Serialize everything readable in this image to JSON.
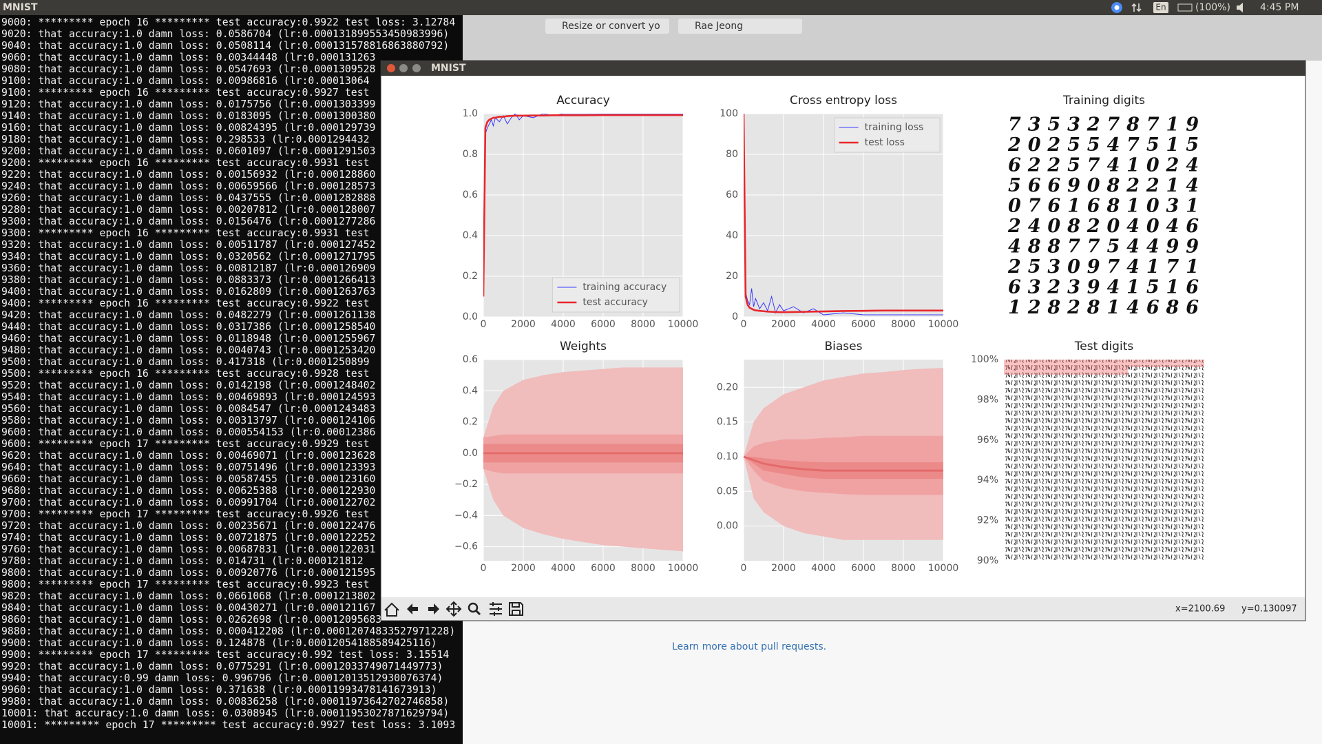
{
  "top_bar": {
    "title": "MNIST",
    "language": "En",
    "battery": "(100%)",
    "clock": "4:45 PM"
  },
  "browser": {
    "tabs": [
      "Resize or convert yo",
      "Rae Jeong"
    ],
    "link": "Learn more about pull requests."
  },
  "terminal": {
    "lines": [
      "9000: ********* epoch 16 ********* test accuracy:0.9922 test loss: 3.12784",
      "9020: that accuracy:1.0 damn loss: 0.0586704 (lr:0.000131899553450983996)",
      "9040: that accuracy:1.0 damn loss: 0.0508114 (lr:0.000131578816863880792)",
      "9060: that accuracy:1.0 damn loss: 0.00344448 (lr:0.000131263",
      "9080: that accuracy:1.0 damn loss: 0.0547693 (lr:0.0001309528",
      "9100: that accuracy:1.0 damn loss: 0.00986816 (lr:0.00013064",
      "9100: ********* epoch 16 ********* test accuracy:0.9927 test",
      "9120: that accuracy:1.0 damn loss: 0.0175756 (lr:0.0001303399",
      "9140: that accuracy:1.0 damn loss: 0.0183095 (lr:0.0001300380",
      "9160: that accuracy:1.0 damn loss: 0.00824395 (lr:0.000129739",
      "9180: that accuracy:1.0 damn loss: 0.298533 (lr:0.0001294432",
      "9200: that accuracy:1.0 damn loss: 0.0601097 (lr:0.0001291503",
      "9200: ********* epoch 16 ********* test accuracy:0.9931 test",
      "9220: that accuracy:1.0 damn loss: 0.00156932 (lr:0.000128860",
      "9240: that accuracy:1.0 damn loss: 0.00659566 (lr:0.000128573",
      "9260: that accuracy:1.0 damn loss: 0.0437555 (lr:0.0001282888",
      "9280: that accuracy:1.0 damn loss: 0.00207812 (lr:0.000128007",
      "9300: that accuracy:1.0 damn loss: 0.0156476 (lr:0.0001277286",
      "9300: ********* epoch 16 ********* test accuracy:0.9931 test",
      "9320: that accuracy:1.0 damn loss: 0.00511787 (lr:0.000127452",
      "9340: that accuracy:1.0 damn loss: 0.0320562 (lr:0.0001271795",
      "9360: that accuracy:1.0 damn loss: 0.00812187 (lr:0.000126909",
      "9380: that accuracy:1.0 damn loss: 0.0883373 (lr:0.0001266413",
      "9400: that accuracy:1.0 damn loss: 0.0162809 (lr:0.0001263763",
      "9400: ********* epoch 16 ********* test accuracy:0.9922 test",
      "9420: that accuracy:1.0 damn loss: 0.0482279 (lr:0.0001261138",
      "9440: that accuracy:1.0 damn loss: 0.0317386 (lr:0.0001258540",
      "9460: that accuracy:1.0 damn loss: 0.0118948 (lr:0.0001255967",
      "9480: that accuracy:1.0 damn loss: 0.0040743 (lr:0.0001253420",
      "9500: that accuracy:1.0 damn loss: 0.417318 (lr:0.0001250899",
      "9500: ********* epoch 16 ********* test accuracy:0.9928 test",
      "9520: that accuracy:1.0 damn loss: 0.0142198 (lr:0.0001248402",
      "9540: that accuracy:1.0 damn loss: 0.00469893 (lr:0.000124593",
      "9560: that accuracy:1.0 damn loss: 0.0084547 (lr:0.0001243483",
      "9580: that accuracy:1.0 damn loss: 0.00313797 (lr:0.000124106",
      "9600: that accuracy:1.0 damn loss: 0.000554153 (lr:0.00012386",
      "9600: ********* epoch 17 ********* test accuracy:0.9929 test",
      "9620: that accuracy:1.0 damn loss: 0.00469071 (lr:0.000123628",
      "9640: that accuracy:1.0 damn loss: 0.00751496 (lr:0.000123393",
      "9660: that accuracy:1.0 damn loss: 0.00587455 (lr:0.000123160",
      "9680: that accuracy:1.0 damn loss: 0.00625388 (lr:0.000122930",
      "9700: that accuracy:1.0 damn loss: 0.00991704 (lr:0.000122702",
      "9700: ********* epoch 17 ********* test accuracy:0.9926 test",
      "9720: that accuracy:1.0 damn loss: 0.00235671 (lr:0.000122476",
      "9740: that accuracy:1.0 damn loss: 0.00721875 (lr:0.000122252",
      "9760: that accuracy:1.0 damn loss: 0.00687831 (lr:0.000122031",
      "9780: that accuracy:1.0 damn loss: 0.014731 (lr:0.000121812",
      "9800: that accuracy:1.0 damn loss: 0.00920776 (lr:0.000121595",
      "9800: ********* epoch 17 ********* test accuracy:0.9923 test",
      "9820: that accuracy:1.0 damn loss: 0.0661068 (lr:0.0001213802",
      "9840: that accuracy:1.0 damn loss: 0.00430271 (lr:0.000121167",
      "9860: that accuracy:1.0 damn loss: 0.0262698 (lr:0.00012095683",
      "9880: that accuracy:1.0 damn loss: 0.000412208 (lr:0.00012074833527971228)",
      "9900: that accuracy:1.0 damn loss: 0.124878 (lr:0.00012054188589425116)",
      "9900: ********* epoch 17 ********* test accuracy:0.992 test loss: 3.15514",
      "9920: that accuracy:1.0 damn loss: 0.0775291 (lr:0.00012033749071449773)",
      "9940: that accuracy:0.99 damn loss: 0.996796 (lr:0.00012013512930076374)",
      "9960: that accuracy:1.0 damn loss: 0.371638 (lr:0.00011993478141673913)",
      "9980: that accuracy:1.0 damn loss: 0.00836258 (lr:0.00011973642702746858)",
      "10001: that accuracy:1.0 damn loss: 0.0308945 (lr:0.00011953027871629794)",
      "10001: ********* epoch 17 ********* test accuracy:0.9927 test loss: 3.1093"
    ]
  },
  "window": {
    "title": "MNIST",
    "status_x": "x=2100.69",
    "status_y": "y=0.130097"
  },
  "chart_data": [
    {
      "type": "line",
      "title": "Accuracy",
      "legend": "lower right",
      "grid": true,
      "x": [
        0,
        100,
        200,
        300,
        400,
        500,
        600,
        800,
        1000,
        1200,
        1400,
        1600,
        1800,
        2000,
        2500,
        3000,
        3500,
        4000,
        5000,
        6000,
        7000,
        8000,
        9000,
        10000
      ],
      "xlim": [
        0,
        10000
      ],
      "xticks": [
        0,
        2000,
        4000,
        6000,
        8000,
        10000
      ],
      "ylim": [
        0,
        1
      ],
      "yticks": [
        {
          "value": 0,
          "label": "0.0"
        },
        0.2,
        0.4,
        0.6,
        0.8,
        {
          "value": 1,
          "label": "1.0"
        }
      ],
      "series": [
        {
          "name": "training accuracy",
          "color": "#3a3aff",
          "values": [
            0.1,
            0.9,
            0.93,
            0.95,
            0.97,
            0.94,
            0.98,
            0.96,
            0.99,
            0.95,
            0.98,
            1.0,
            0.97,
            0.99,
            0.98,
            1.0,
            0.99,
            1.0,
            1.0,
            1.0,
            1.0,
            1.0,
            1.0,
            1.0
          ]
        },
        {
          "name": "test accuracy",
          "color": "#e8262b",
          "values": [
            0.1,
            0.93,
            0.96,
            0.97,
            0.975,
            0.98,
            0.98,
            0.985,
            0.985,
            0.988,
            0.989,
            0.99,
            0.99,
            0.99,
            0.991,
            0.991,
            0.992,
            0.992,
            0.992,
            0.993,
            0.993,
            0.993,
            0.993,
            0.993
          ]
        }
      ]
    },
    {
      "type": "line",
      "title": "Cross entropy loss",
      "legend": "upper right",
      "grid": true,
      "x": [
        0,
        100,
        200,
        300,
        400,
        500,
        600,
        800,
        1000,
        1200,
        1400,
        1600,
        1800,
        2000,
        2500,
        3000,
        3500,
        4000,
        5000,
        6000,
        7000,
        8000,
        9000,
        10000
      ],
      "xlim": [
        0,
        10000
      ],
      "xticks": [
        0,
        2000,
        4000,
        6000,
        8000,
        10000
      ],
      "ylim": [
        0,
        100
      ],
      "yticks": [
        0,
        20,
        40,
        60,
        80,
        100
      ],
      "series": [
        {
          "name": "training loss",
          "color": "#3a3aff",
          "values": [
            100,
            12,
            8,
            6,
            14,
            5,
            9,
            4,
            7,
            3,
            10,
            2,
            6,
            3,
            5,
            2,
            4,
            1,
            2,
            1,
            1,
            1,
            1,
            1
          ]
        },
        {
          "name": "test loss",
          "color": "#e8262b",
          "values": [
            100,
            10,
            6,
            4.5,
            4,
            3.5,
            3.2,
            3,
            2.8,
            2.6,
            2.5,
            2.4,
            2.3,
            2.3,
            2.4,
            2.5,
            2.6,
            2.7,
            2.9,
            3,
            3.1,
            3.1,
            3.1,
            3.1
          ]
        }
      ]
    },
    {
      "type": "image",
      "title": "Training digits",
      "digits": [
        "7353278719",
        "2025547515",
        "6225741024",
        "5669082214",
        "0761681031",
        "2408204046",
        "4887754499",
        "2530974171",
        "6323941516",
        "1282814686"
      ]
    },
    {
      "type": "band",
      "title": "Weights",
      "grid": true,
      "x": [
        0,
        500,
        1000,
        2000,
        3000,
        4000,
        5000,
        6000,
        7000,
        8000,
        9000,
        10000
      ],
      "xlim": [
        0,
        10000
      ],
      "xticks": [
        0,
        2000,
        4000,
        6000,
        8000,
        10000
      ],
      "ylim": [
        -0.69,
        0.6
      ],
      "yticks": [
        {
          "value": -0.6,
          "label": "−0.6"
        },
        {
          "value": -0.4,
          "label": "−0.4"
        },
        {
          "value": -0.2,
          "label": "−0.2"
        },
        {
          "value": 0,
          "label": "0.0"
        },
        0.2,
        0.4,
        0.6
      ],
      "bands": [
        {
          "color": "#f1bcbc",
          "upper": [
            0.1,
            0.3,
            0.4,
            0.47,
            0.5,
            0.52,
            0.53,
            0.54,
            0.55,
            0.55,
            0.55,
            0.55
          ],
          "lower": [
            -0.1,
            -0.3,
            -0.4,
            -0.48,
            -0.52,
            -0.55,
            -0.57,
            -0.59,
            -0.6,
            -0.61,
            -0.62,
            -0.63
          ]
        },
        {
          "color": "#f0a2a2",
          "upper": [
            0.1,
            0.11,
            0.12,
            0.12,
            0.12,
            0.12,
            0.12,
            0.12,
            0.12,
            0.12,
            0.12,
            0.12
          ],
          "lower": [
            -0.1,
            -0.12,
            -0.13,
            -0.13,
            -0.13,
            -0.13,
            -0.13,
            -0.13,
            -0.13,
            -0.13,
            -0.13,
            -0.13
          ]
        },
        {
          "color": "#ec8a8a",
          "upper": [
            0.06,
            0.06,
            0.06,
            0.06,
            0.06,
            0.06,
            0.06,
            0.06,
            0.06,
            0.06,
            0.06,
            0.06
          ],
          "lower": [
            -0.06,
            -0.06,
            -0.06,
            -0.06,
            -0.06,
            -0.06,
            -0.06,
            -0.06,
            -0.06,
            -0.06,
            -0.06,
            -0.06
          ]
        }
      ],
      "median": {
        "color": "#e46a6a",
        "values": [
          0,
          0,
          0,
          0,
          0,
          0,
          0,
          0,
          0,
          0,
          0,
          0
        ]
      }
    },
    {
      "type": "band",
      "title": "Biases",
      "grid": true,
      "x": [
        0,
        500,
        1000,
        2000,
        3000,
        4000,
        5000,
        6000,
        7000,
        8000,
        9000,
        10000
      ],
      "xlim": [
        0,
        10000
      ],
      "xticks": [
        0,
        2000,
        4000,
        6000,
        8000,
        10000
      ],
      "ylim": [
        -0.05,
        0.24
      ],
      "yticks": [
        {
          "value": 0,
          "label": "0.00"
        },
        0.05,
        {
          "value": 0.1,
          "label": "0.10"
        },
        0.15,
        {
          "value": 0.2,
          "label": "0.20"
        }
      ],
      "bands": [
        {
          "color": "#f1bcbc",
          "upper": [
            0.1,
            0.15,
            0.17,
            0.19,
            0.2,
            0.21,
            0.215,
            0.22,
            0.222,
            0.225,
            0.227,
            0.228
          ],
          "lower": [
            0.1,
            0.04,
            0.02,
            0.0,
            -0.01,
            -0.015,
            -0.02,
            -0.02,
            -0.02,
            -0.02,
            -0.02,
            -0.02
          ]
        },
        {
          "color": "#f0a2a2",
          "upper": [
            0.1,
            0.115,
            0.12,
            0.125,
            0.125,
            0.127,
            0.128,
            0.13,
            0.13,
            0.13,
            0.13,
            0.13
          ],
          "lower": [
            0.1,
            0.08,
            0.065,
            0.055,
            0.05,
            0.048,
            0.046,
            0.045,
            0.045,
            0.045,
            0.045,
            0.045
          ]
        },
        {
          "color": "#ec8a8a",
          "upper": [
            0.1,
            0.1,
            0.098,
            0.095,
            0.093,
            0.092,
            0.092,
            0.092,
            0.092,
            0.092,
            0.092,
            0.092
          ],
          "lower": [
            0.1,
            0.09,
            0.08,
            0.075,
            0.07,
            0.068,
            0.068,
            0.068,
            0.068,
            0.068,
            0.068,
            0.068
          ]
        }
      ],
      "median": {
        "color": "#e46a6a",
        "values": [
          0.1,
          0.095,
          0.09,
          0.085,
          0.082,
          0.08,
          0.08,
          0.08,
          0.08,
          0.08,
          0.08,
          0.08
        ]
      }
    },
    {
      "type": "image",
      "title": "Test digits",
      "ylim": [
        90,
        100
      ],
      "yticks": [
        {
          "value": 100,
          "label": "100%"
        },
        {
          "value": 98,
          "label": "98%"
        },
        {
          "value": 96,
          "label": "96%"
        },
        {
          "value": 94,
          "label": "94%"
        },
        {
          "value": 92,
          "label": "92%"
        },
        {
          "value": 90,
          "label": "90%"
        }
      ]
    }
  ]
}
